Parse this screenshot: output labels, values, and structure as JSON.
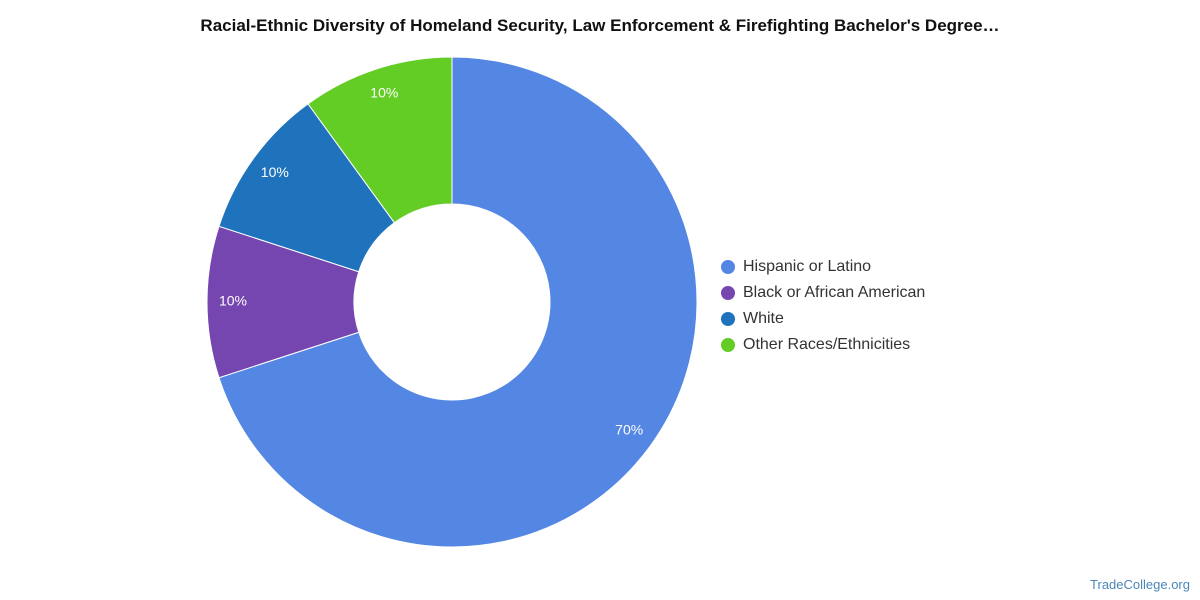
{
  "chart_data": {
    "type": "pie",
    "variant": "donut",
    "title": "Racial-Ethnic Diversity of Homeland Security, Law Enforcement & Firefighting Bachelor's Degree…",
    "categories": [
      "Hispanic or Latino",
      "Black or African American",
      "White",
      "Other Races/Ethnicities"
    ],
    "values": [
      70,
      10,
      10,
      10
    ],
    "value_labels": [
      "70%",
      "10%",
      "10%",
      "10%"
    ],
    "colors": [
      "#5486e3",
      "#7546b0",
      "#1f73bc",
      "#63cc25"
    ],
    "legend_position": "right"
  },
  "watermark": "TradeCollege.org"
}
